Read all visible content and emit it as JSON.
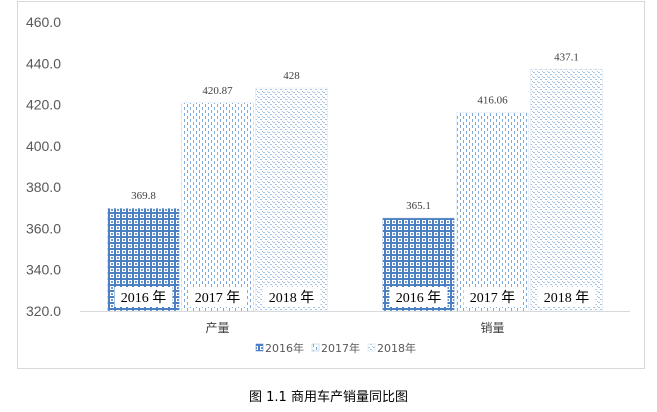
{
  "chart_data": {
    "type": "bar",
    "categories": [
      "产量",
      "销量"
    ],
    "series": [
      {
        "name": "2016年",
        "values": [
          369.8,
          365.1
        ],
        "labels": [
          "369.8",
          "365.1"
        ],
        "color": "#4a7fc1"
      },
      {
        "name": "2017年",
        "values": [
          420.87,
          416.06
        ],
        "labels": [
          "420.87",
          "416.06"
        ],
        "color": "#9cc0e6"
      },
      {
        "name": "2018年",
        "values": [
          428,
          437.1
        ],
        "labels": [
          "428",
          "437.1"
        ],
        "color": "#c8dcef"
      }
    ],
    "bar_inner_labels": [
      "2016 年",
      "2017 年",
      "2018 年"
    ],
    "ylim": [
      320,
      460
    ],
    "yticks": [
      "320.0",
      "340.0",
      "360.0",
      "380.0",
      "400.0",
      "420.0",
      "440.0",
      "460.0"
    ],
    "grid": false,
    "legend": "bottom"
  },
  "caption": "图 1.1 商用车产销量同比图"
}
